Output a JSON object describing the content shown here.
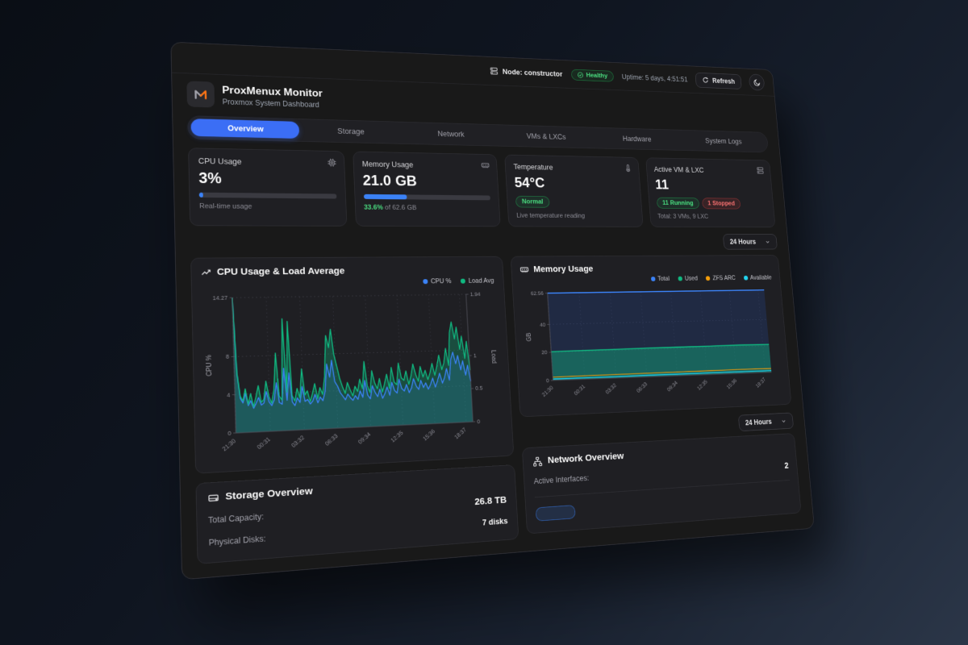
{
  "topbar": {
    "node_label": "Node: constructor",
    "health_badge": "Healthy",
    "uptime": "Uptime: 5 days, 4:51:51",
    "refresh_label": "Refresh"
  },
  "header": {
    "title": "ProxMenux Monitor",
    "subtitle": "Proxmox System Dashboard"
  },
  "tabs": [
    {
      "label": "Overview",
      "active": true
    },
    {
      "label": "Storage",
      "active": false
    },
    {
      "label": "Network",
      "active": false
    },
    {
      "label": "VMs & LXCs",
      "active": false
    },
    {
      "label": "Hardware",
      "active": false
    },
    {
      "label": "System Logs",
      "active": false
    }
  ],
  "stats": {
    "cpu": {
      "title": "CPU Usage",
      "value": "3%",
      "percent": 3,
      "caption": "Real-time usage"
    },
    "memory": {
      "title": "Memory Usage",
      "value": "21.0 GB",
      "percent": 33.6,
      "caption_highlight": "33.6%",
      "caption_rest": " of 62.6 GB"
    },
    "temperature": {
      "title": "Temperature",
      "value": "54°C",
      "badge": "Normal",
      "caption": "Live temperature reading"
    },
    "vms": {
      "title": "Active VM & LXC",
      "value": "11",
      "running_badge": "11 Running",
      "stopped_badge": "1 Stopped",
      "caption": "Total: 3 VMs, 9 LXC"
    }
  },
  "time_selector": {
    "label": "24 Hours"
  },
  "time_selector2": {
    "label": "24 Hours"
  },
  "chart_data": [
    {
      "type": "line",
      "title": "CPU Usage & Load Average",
      "legend": [
        {
          "name": "CPU %",
          "color": "#3b82f6"
        },
        {
          "name": "Load Avg",
          "color": "#10b981"
        }
      ],
      "x_ticks": [
        "21:30",
        "00:31",
        "03:32",
        "06:33",
        "09:34",
        "12:35",
        "15:36",
        "18:37"
      ],
      "left_axis": {
        "label": "CPU %",
        "ticks": [
          0,
          4,
          8,
          14.27
        ],
        "max": 14.27
      },
      "right_axis": {
        "label": "Load",
        "ticks": [
          0,
          0.5,
          1,
          1.94
        ],
        "max": 1.94
      },
      "series": [
        {
          "name": "CPU %",
          "axis": "left",
          "color": "#3b82f6",
          "width": 1.6,
          "fill": "rgba(59,130,246,0.20)",
          "values": [
            14.27,
            6.2,
            3.6,
            3.1,
            4.1,
            2.8,
            3.3,
            2.5,
            3.0,
            3.6,
            2.8,
            3.0,
            4.2,
            3.1,
            2.7,
            3.3,
            5.1,
            3.0,
            2.8,
            6.6,
            3.2,
            6.1,
            3.0,
            2.6,
            3.4,
            2.9,
            4.6,
            3.0,
            3.2,
            2.7,
            3.0,
            3.7,
            2.8,
            3.4,
            3.0,
            4.0,
            6.9,
            5.5,
            7.3,
            5.0,
            4.5,
            3.8,
            3.4,
            3.0,
            3.6,
            3.2,
            2.9,
            3.4,
            3.0,
            3.9,
            3.2,
            5.0,
            3.4,
            3.0,
            4.4,
            3.7,
            3.2,
            4.0,
            3.0,
            3.5,
            4.2,
            3.3,
            4.7,
            3.8,
            3.5,
            5.0,
            4.0,
            3.7,
            4.4,
            3.5,
            4.0,
            5.0,
            4.2,
            3.8,
            4.8,
            4.0,
            4.5,
            3.8,
            4.3,
            5.0,
            4.0,
            4.7,
            5.5,
            4.4,
            5.0,
            6.0,
            4.7,
            7.0,
            7.8,
            6.5,
            7.4,
            5.8,
            6.8,
            5.2,
            6.3,
            4.5
          ]
        },
        {
          "name": "Load Avg",
          "axis": "right",
          "color": "#10b981",
          "width": 1.6,
          "fill": "rgba(16,185,129,0.30)",
          "values": [
            1.94,
            0.85,
            0.52,
            0.45,
            0.62,
            0.4,
            0.55,
            0.36,
            0.5,
            0.66,
            0.42,
            0.46,
            0.72,
            0.5,
            0.4,
            0.6,
            1.12,
            0.5,
            0.44,
            1.62,
            0.55,
            1.58,
            0.5,
            0.42,
            0.6,
            0.46,
            0.88,
            0.5,
            0.56,
            0.4,
            0.52,
            0.66,
            0.44,
            0.6,
            0.5,
            0.76,
            1.36,
            1.18,
            1.45,
            1.08,
            0.9,
            0.72,
            0.6,
            0.5,
            0.66,
            0.55,
            0.46,
            0.6,
            0.52,
            0.7,
            0.56,
            0.96,
            0.6,
            0.5,
            0.82,
            0.64,
            0.55,
            0.7,
            0.5,
            0.62,
            0.76,
            0.55,
            0.86,
            0.64,
            0.6,
            0.92,
            0.7,
            0.66,
            0.8,
            0.6,
            0.72,
            0.9,
            0.74,
            0.64,
            0.86,
            0.7,
            0.8,
            0.66,
            0.76,
            0.9,
            0.72,
            0.86,
            1.02,
            0.8,
            0.9,
            1.12,
            0.86,
            1.36,
            1.52,
            1.26,
            1.44,
            1.1,
            1.3,
            0.96,
            1.22,
            0.78
          ]
        }
      ]
    },
    {
      "type": "area",
      "title": "Memory Usage",
      "legend": [
        {
          "name": "Total",
          "color": "#3b82f6"
        },
        {
          "name": "Used",
          "color": "#10b981"
        },
        {
          "name": "ZFS ARC",
          "color": "#f59e0b"
        },
        {
          "name": "Available",
          "color": "#22d3ee"
        }
      ],
      "x_ticks": [
        "21:30",
        "00:31",
        "03:32",
        "06:33",
        "09:34",
        "12:35",
        "15:36",
        "18:37"
      ],
      "left_axis": {
        "label": "GB",
        "ticks": [
          0,
          20,
          40,
          62.56
        ],
        "max": 62.56
      },
      "series": [
        {
          "name": "Total",
          "color": "#3b82f6",
          "width": 2,
          "fill": "rgba(37,99,235,0.16)",
          "values": [
            62.56,
            62.56,
            62.56,
            62.56,
            62.56,
            62.56,
            62.56,
            62.56
          ]
        },
        {
          "name": "Used",
          "color": "#10b981",
          "width": 1.8,
          "fill": "rgba(16,185,129,0.40)",
          "values": [
            20.4,
            20.6,
            20.7,
            20.9,
            21.0,
            21.1,
            21.2,
            21.1
          ]
        },
        {
          "name": "ZFS ARC",
          "color": "#f59e0b",
          "width": 1.3,
          "values": [
            2.3,
            2.4,
            2.5,
            2.6,
            2.7,
            2.8,
            2.9,
            2.8
          ]
        },
        {
          "name": "Available",
          "color": "#22d3ee",
          "width": 1.6,
          "values": [
            0.9,
            1.0,
            1.0,
            1.1,
            1.1,
            1.2,
            1.2,
            1.2
          ]
        }
      ]
    }
  ],
  "storage": {
    "title": "Storage Overview",
    "rows": [
      {
        "label": "Total Capacity:",
        "value": "26.8 TB"
      },
      {
        "label": "Physical Disks:",
        "value": "7 disks"
      }
    ]
  },
  "network": {
    "title": "Network Overview",
    "rows": [
      {
        "label": "Active Interfaces:",
        "value": "2"
      }
    ]
  },
  "colors": {
    "accent": "#3b82f6",
    "green": "#22c55e",
    "red": "#ef4444",
    "orange": "#f59e0b",
    "cyan": "#22d3ee",
    "logo_orange": "#f97316"
  }
}
